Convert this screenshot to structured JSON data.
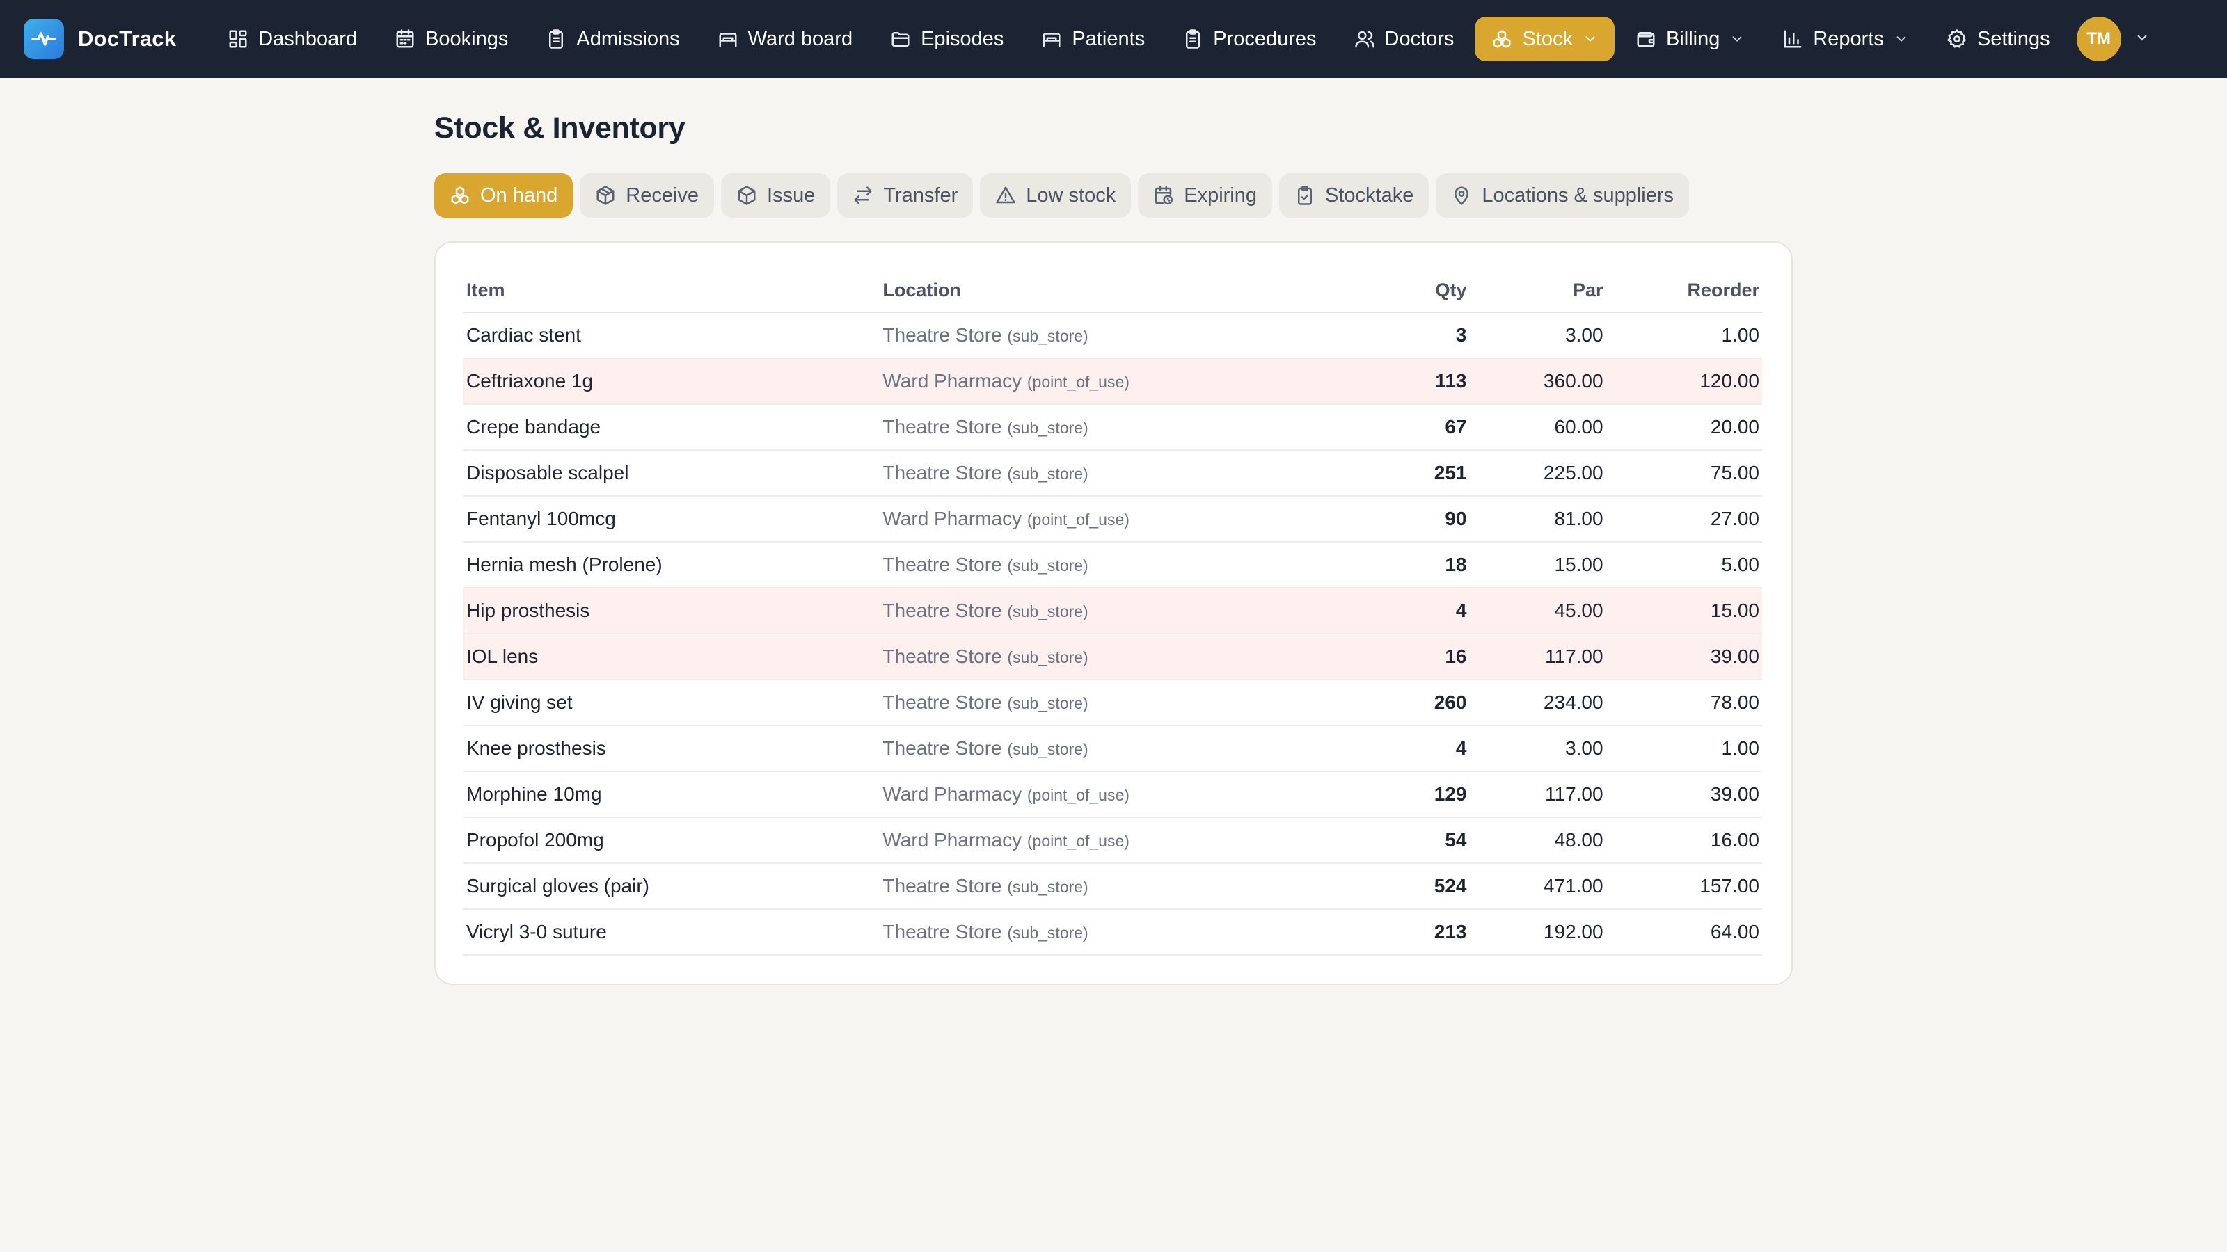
{
  "app": {
    "name": "DocTrack"
  },
  "nav": {
    "items": [
      {
        "label": "Dashboard",
        "icon": "dashboard-icon"
      },
      {
        "label": "Bookings",
        "icon": "calendar-icon"
      },
      {
        "label": "Admissions",
        "icon": "clipboard-icon"
      },
      {
        "label": "Ward board",
        "icon": "bed-icon"
      },
      {
        "label": "Episodes",
        "icon": "folder-icon"
      },
      {
        "label": "Patients",
        "icon": "bed-icon"
      },
      {
        "label": "Procedures",
        "icon": "clipboard-icon"
      },
      {
        "label": "Doctors",
        "icon": "users-icon"
      },
      {
        "label": "Stock",
        "icon": "boxes-icon",
        "active": true,
        "dropdown": true
      },
      {
        "label": "Billing",
        "icon": "wallet-icon",
        "dropdown": true
      },
      {
        "label": "Reports",
        "icon": "bar-chart-icon",
        "dropdown": true
      },
      {
        "label": "Settings",
        "icon": "gear-icon"
      }
    ],
    "user_initials": "TM",
    "accent_color": "#d9a72f",
    "bar_color": "#1c2433"
  },
  "page": {
    "title": "Stock & Inventory",
    "tabs": [
      {
        "label": "On hand",
        "icon": "boxes-icon",
        "active": true
      },
      {
        "label": "Receive",
        "icon": "package-icon"
      },
      {
        "label": "Issue",
        "icon": "package-icon"
      },
      {
        "label": "Transfer",
        "icon": "transfer-icon"
      },
      {
        "label": "Low stock",
        "icon": "warning-icon"
      },
      {
        "label": "Expiring",
        "icon": "calendar-clock-icon"
      },
      {
        "label": "Stocktake",
        "icon": "clipboard-check-icon"
      },
      {
        "label": "Locations & suppliers",
        "icon": "map-pin-icon"
      }
    ]
  },
  "table": {
    "columns": {
      "item": "Item",
      "location": "Location",
      "qty": "Qty",
      "par": "Par",
      "reorder": "Reorder"
    },
    "low_stock_row_color": "#fdf0ef",
    "rows": [
      {
        "item": "Cardiac stent",
        "location": "Theatre Store",
        "location_type": "(sub_store)",
        "qty": "3",
        "par": "3.00",
        "reorder": "1.00",
        "low": false
      },
      {
        "item": "Ceftriaxone 1g",
        "location": "Ward Pharmacy",
        "location_type": "(point_of_use)",
        "qty": "113",
        "par": "360.00",
        "reorder": "120.00",
        "low": true
      },
      {
        "item": "Crepe bandage",
        "location": "Theatre Store",
        "location_type": "(sub_store)",
        "qty": "67",
        "par": "60.00",
        "reorder": "20.00",
        "low": false
      },
      {
        "item": "Disposable scalpel",
        "location": "Theatre Store",
        "location_type": "(sub_store)",
        "qty": "251",
        "par": "225.00",
        "reorder": "75.00",
        "low": false
      },
      {
        "item": "Fentanyl 100mcg",
        "location": "Ward Pharmacy",
        "location_type": "(point_of_use)",
        "qty": "90",
        "par": "81.00",
        "reorder": "27.00",
        "low": false
      },
      {
        "item": "Hernia mesh (Prolene)",
        "location": "Theatre Store",
        "location_type": "(sub_store)",
        "qty": "18",
        "par": "15.00",
        "reorder": "5.00",
        "low": false
      },
      {
        "item": "Hip prosthesis",
        "location": "Theatre Store",
        "location_type": "(sub_store)",
        "qty": "4",
        "par": "45.00",
        "reorder": "15.00",
        "low": true
      },
      {
        "item": "IOL lens",
        "location": "Theatre Store",
        "location_type": "(sub_store)",
        "qty": "16",
        "par": "117.00",
        "reorder": "39.00",
        "low": true
      },
      {
        "item": "IV giving set",
        "location": "Theatre Store",
        "location_type": "(sub_store)",
        "qty": "260",
        "par": "234.00",
        "reorder": "78.00",
        "low": false
      },
      {
        "item": "Knee prosthesis",
        "location": "Theatre Store",
        "location_type": "(sub_store)",
        "qty": "4",
        "par": "3.00",
        "reorder": "1.00",
        "low": false
      },
      {
        "item": "Morphine 10mg",
        "location": "Ward Pharmacy",
        "location_type": "(point_of_use)",
        "qty": "129",
        "par": "117.00",
        "reorder": "39.00",
        "low": false
      },
      {
        "item": "Propofol 200mg",
        "location": "Ward Pharmacy",
        "location_type": "(point_of_use)",
        "qty": "54",
        "par": "48.00",
        "reorder": "16.00",
        "low": false
      },
      {
        "item": "Surgical gloves (pair)",
        "location": "Theatre Store",
        "location_type": "(sub_store)",
        "qty": "524",
        "par": "471.00",
        "reorder": "157.00",
        "low": false
      },
      {
        "item": "Vicryl 3-0 suture",
        "location": "Theatre Store",
        "location_type": "(sub_store)",
        "qty": "213",
        "par": "192.00",
        "reorder": "64.00",
        "low": false
      }
    ]
  }
}
